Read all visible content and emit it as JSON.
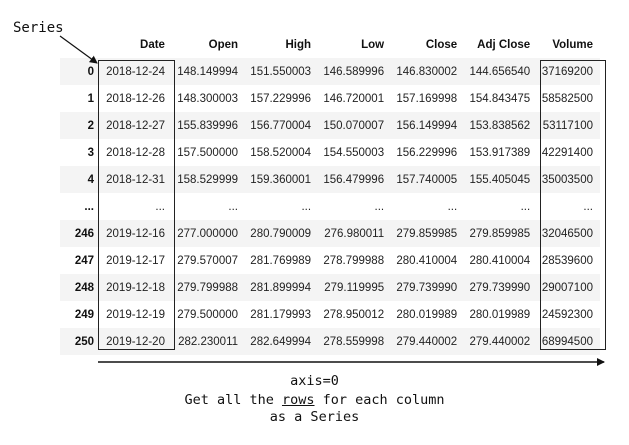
{
  "series_label": "Series",
  "axis_label": "axis=0",
  "caption": {
    "before": "Get all the ",
    "underlined": "rows",
    "after": " for each column",
    "line2": "as a Series"
  },
  "table": {
    "columns": [
      "",
      "Date",
      "Open",
      "High",
      "Low",
      "Close",
      "Adj Close",
      "Volume"
    ],
    "rows": [
      [
        "0",
        "2018-12-24",
        "148.149994",
        "151.550003",
        "146.589996",
        "146.830002",
        "144.656540",
        "37169200"
      ],
      [
        "1",
        "2018-12-26",
        "148.300003",
        "157.229996",
        "146.720001",
        "157.169998",
        "154.843475",
        "58582500"
      ],
      [
        "2",
        "2018-12-27",
        "155.839996",
        "156.770004",
        "150.070007",
        "156.149994",
        "153.838562",
        "53117100"
      ],
      [
        "3",
        "2018-12-28",
        "157.500000",
        "158.520004",
        "154.550003",
        "156.229996",
        "153.917389",
        "42291400"
      ],
      [
        "4",
        "2018-12-31",
        "158.529999",
        "159.360001",
        "156.479996",
        "157.740005",
        "155.405045",
        "35003500"
      ],
      [
        "...",
        "...",
        "...",
        "...",
        "...",
        "...",
        "...",
        "..."
      ],
      [
        "246",
        "2019-12-16",
        "277.000000",
        "280.790009",
        "276.980011",
        "279.859985",
        "279.859985",
        "32046500"
      ],
      [
        "247",
        "2019-12-17",
        "279.570007",
        "281.769989",
        "278.799988",
        "280.410004",
        "280.410004",
        "28539600"
      ],
      [
        "248",
        "2019-12-18",
        "279.799988",
        "281.899994",
        "279.119995",
        "279.739990",
        "279.739990",
        "29007100"
      ],
      [
        "249",
        "2019-12-19",
        "279.500000",
        "281.179993",
        "278.950012",
        "280.019989",
        "280.019989",
        "24592300"
      ],
      [
        "250",
        "2019-12-20",
        "282.230011",
        "282.649994",
        "278.559998",
        "279.440002",
        "279.440002",
        "68994500"
      ]
    ]
  }
}
